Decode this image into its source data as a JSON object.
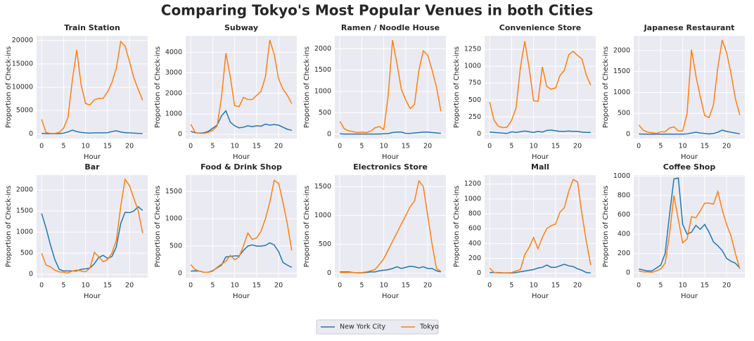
{
  "title": "Comparing Tokyo's Most Popular Venues in both Cities",
  "chart_data": [
    {
      "type": "line",
      "title": "Train Station",
      "xlabel": "Hour",
      "ylabel": "Proportion of Check-ins",
      "x": [
        0,
        1,
        2,
        3,
        4,
        5,
        6,
        7,
        8,
        9,
        10,
        11,
        12,
        13,
        14,
        15,
        16,
        17,
        18,
        19,
        20,
        21,
        22,
        23
      ],
      "xlim": [
        -1.15,
        24.15
      ],
      "xticks": [
        0,
        5,
        10,
        15,
        20
      ],
      "ylim": [
        -1000,
        21000
      ],
      "yticks": [
        0,
        5000,
        10000,
        15000,
        20000
      ],
      "grid": true,
      "series": [
        {
          "name": "New York City",
          "color": "#1f77b4",
          "values": [
            100,
            50,
            30,
            30,
            50,
            150,
            400,
            800,
            500,
            300,
            200,
            150,
            200,
            200,
            200,
            250,
            500,
            650,
            400,
            250,
            200,
            150,
            100,
            80
          ]
        },
        {
          "name": "Tokyo",
          "color": "#ff7f0e",
          "values": [
            3100,
            300,
            100,
            100,
            300,
            1200,
            3500,
            11500,
            18000,
            10500,
            6500,
            6200,
            7300,
            7600,
            7600,
            9000,
            11000,
            14000,
            19800,
            18800,
            15500,
            12000,
            9500,
            7200
          ]
        }
      ]
    },
    {
      "type": "line",
      "title": "Subway",
      "xlabel": "Hour",
      "ylabel": "Proportion of Check-ins",
      "x": [
        0,
        1,
        2,
        3,
        4,
        5,
        6,
        7,
        8,
        9,
        10,
        11,
        12,
        13,
        14,
        15,
        16,
        17,
        18,
        19,
        20,
        21,
        22,
        23
      ],
      "xlim": [
        -1.15,
        24.15
      ],
      "xticks": [
        0,
        5,
        10,
        15,
        20
      ],
      "ylim": [
        -200,
        4800
      ],
      "yticks": [
        0,
        1000,
        2000,
        3000,
        4000
      ],
      "grid": true,
      "series": [
        {
          "name": "New York City",
          "color": "#1f77b4",
          "values": [
            150,
            80,
            60,
            80,
            150,
            300,
            450,
            900,
            1150,
            600,
            420,
            320,
            350,
            420,
            380,
            420,
            400,
            500,
            450,
            480,
            450,
            350,
            250,
            200
          ]
        },
        {
          "name": "Tokyo",
          "color": "#ff7f0e",
          "values": [
            500,
            100,
            50,
            50,
            100,
            200,
            400,
            1800,
            3950,
            2800,
            1400,
            1350,
            1800,
            1700,
            1700,
            1900,
            2100,
            2800,
            4600,
            3900,
            2700,
            2200,
            1900,
            1500
          ]
        }
      ]
    },
    {
      "type": "line",
      "title": "Ramen /  Noodle House",
      "xlabel": "Hour",
      "ylabel": "Proportion of Check-ins",
      "x": [
        0,
        1,
        2,
        3,
        4,
        5,
        6,
        7,
        8,
        9,
        10,
        11,
        12,
        13,
        14,
        15,
        16,
        17,
        18,
        19,
        20,
        21,
        22,
        23
      ],
      "xlim": [
        -1.15,
        24.15
      ],
      "xticks": [
        0,
        5,
        10,
        15,
        20
      ],
      "ylim": [
        -100,
        2300
      ],
      "yticks": [
        0,
        500,
        1000,
        1500,
        2000
      ],
      "grid": true,
      "series": [
        {
          "name": "New York City",
          "color": "#1f77b4",
          "values": [
            10,
            5,
            5,
            5,
            5,
            5,
            5,
            5,
            5,
            5,
            10,
            15,
            40,
            50,
            50,
            20,
            20,
            30,
            40,
            50,
            50,
            40,
            30,
            20
          ]
        },
        {
          "name": "Tokyo",
          "color": "#ff7f0e",
          "values": [
            300,
            130,
            80,
            60,
            40,
            50,
            40,
            70,
            150,
            180,
            110,
            900,
            2200,
            1650,
            1050,
            800,
            600,
            700,
            1500,
            1950,
            1850,
            1500,
            1100,
            540
          ]
        }
      ]
    },
    {
      "type": "line",
      "title": "Convenience Store",
      "xlabel": "Hour",
      "ylabel": "Proportion of Check-ins",
      "x": [
        0,
        1,
        2,
        3,
        4,
        5,
        6,
        7,
        8,
        9,
        10,
        11,
        12,
        13,
        14,
        15,
        16,
        17,
        18,
        19,
        20,
        21,
        22,
        23
      ],
      "xlim": [
        -1.15,
        24.15
      ],
      "xticks": [
        0,
        5,
        10,
        15,
        20
      ],
      "ylim": [
        -70,
        1450
      ],
      "yticks": [
        0,
        250,
        500,
        750,
        1000,
        1250
      ],
      "grid": true,
      "series": [
        {
          "name": "New York City",
          "color": "#1f77b4",
          "values": [
            25,
            20,
            15,
            10,
            5,
            30,
            20,
            30,
            40,
            30,
            20,
            35,
            25,
            50,
            55,
            45,
            35,
            35,
            40,
            35,
            35,
            25,
            20,
            20
          ]
        },
        {
          "name": "Tokyo",
          "color": "#ff7f0e",
          "values": [
            470,
            200,
            110,
            90,
            100,
            200,
            380,
            980,
            1370,
            970,
            490,
            480,
            990,
            700,
            660,
            680,
            860,
            940,
            1170,
            1220,
            1160,
            1110,
            870,
            720
          ]
        }
      ]
    },
    {
      "type": "line",
      "title": "Japanese Restaurant",
      "xlabel": "Hour",
      "ylabel": "Proportion of Check-ins",
      "x": [
        0,
        1,
        2,
        3,
        4,
        5,
        6,
        7,
        8,
        9,
        10,
        11,
        12,
        13,
        14,
        15,
        16,
        17,
        18,
        19,
        20,
        21,
        22,
        23
      ],
      "xlim": [
        -1.15,
        24.15
      ],
      "xticks": [
        0,
        5,
        10,
        15,
        20
      ],
      "ylim": [
        -100,
        2350
      ],
      "yticks": [
        0,
        500,
        1000,
        1500,
        2000
      ],
      "grid": true,
      "series": [
        {
          "name": "New York City",
          "color": "#1f77b4",
          "values": [
            10,
            5,
            5,
            5,
            5,
            5,
            5,
            5,
            5,
            5,
            5,
            10,
            30,
            50,
            30,
            20,
            10,
            20,
            50,
            100,
            70,
            50,
            30,
            10
          ]
        },
        {
          "name": "Tokyo",
          "color": "#ff7f0e",
          "values": [
            220,
            100,
            50,
            40,
            20,
            60,
            60,
            150,
            180,
            80,
            80,
            500,
            2020,
            1400,
            900,
            450,
            400,
            700,
            1600,
            2250,
            1950,
            1450,
            850,
            460
          ]
        }
      ]
    },
    {
      "type": "line",
      "title": "Bar",
      "xlabel": "Hour",
      "ylabel": "Proportion of Check-ins",
      "x": [
        0,
        1,
        2,
        3,
        4,
        5,
        6,
        7,
        8,
        9,
        10,
        11,
        12,
        13,
        14,
        15,
        16,
        17,
        18,
        19,
        20,
        21,
        22,
        23
      ],
      "xlim": [
        -1.15,
        24.15
      ],
      "xticks": [
        0,
        5,
        10,
        15,
        20
      ],
      "ylim": [
        -80,
        2350
      ],
      "yticks": [
        0,
        500,
        1000,
        1500,
        2000
      ],
      "grid": true,
      "series": [
        {
          "name": "New York City",
          "color": "#1f77b4",
          "values": [
            1440,
            1100,
            700,
            350,
            120,
            80,
            80,
            80,
            80,
            120,
            130,
            150,
            250,
            400,
            450,
            380,
            420,
            650,
            1200,
            1470,
            1460,
            1500,
            1600,
            1510
          ]
        },
        {
          "name": "Tokyo",
          "color": "#ff7f0e",
          "values": [
            500,
            220,
            180,
            100,
            60,
            50,
            30,
            80,
            100,
            80,
            60,
            150,
            520,
            420,
            300,
            350,
            500,
            800,
            1600,
            2250,
            2100,
            1800,
            1500,
            980
          ]
        }
      ]
    },
    {
      "type": "line",
      "title": "Food & Drink Shop",
      "xlabel": "Hour",
      "ylabel": "Proportion of Check-ins",
      "x": [
        0,
        1,
        2,
        3,
        4,
        5,
        6,
        7,
        8,
        9,
        10,
        11,
        12,
        13,
        14,
        15,
        16,
        17,
        18,
        19,
        20,
        21,
        22,
        23
      ],
      "xlim": [
        -1.15,
        24.15
      ],
      "xticks": [
        0,
        5,
        10,
        15,
        20
      ],
      "ylim": [
        -80,
        1800
      ],
      "yticks": [
        0,
        500,
        1000,
        1500
      ],
      "grid": true,
      "series": [
        {
          "name": "New York City",
          "color": "#1f77b4",
          "values": [
            40,
            45,
            40,
            20,
            20,
            50,
            100,
            150,
            300,
            310,
            320,
            320,
            420,
            500,
            520,
            500,
            500,
            510,
            560,
            520,
            400,
            200,
            150,
            110
          ]
        },
        {
          "name": "Tokyo",
          "color": "#ff7f0e",
          "values": [
            160,
            70,
            40,
            20,
            20,
            40,
            110,
            170,
            220,
            330,
            250,
            300,
            500,
            740,
            620,
            650,
            770,
            1000,
            1300,
            1700,
            1650,
            1300,
            900,
            420
          ]
        }
      ]
    },
    {
      "type": "line",
      "title": "Electronics Store",
      "xlabel": "Hour",
      "ylabel": "Proportion of Check-ins",
      "x": [
        0,
        1,
        2,
        3,
        4,
        5,
        6,
        7,
        8,
        9,
        10,
        11,
        12,
        13,
        14,
        15,
        16,
        17,
        18,
        19,
        20,
        21,
        22,
        23
      ],
      "xlim": [
        -1.15,
        24.15
      ],
      "xticks": [
        0,
        5,
        10,
        15,
        20
      ],
      "ylim": [
        -80,
        1700
      ],
      "yticks": [
        0,
        500,
        1000,
        1500
      ],
      "grid": true,
      "series": [
        {
          "name": "New York City",
          "color": "#1f77b4",
          "values": [
            20,
            20,
            20,
            10,
            5,
            5,
            10,
            20,
            20,
            40,
            50,
            60,
            80,
            110,
            80,
            100,
            120,
            110,
            90,
            110,
            80,
            80,
            40,
            20
          ]
        },
        {
          "name": "Tokyo",
          "color": "#ff7f0e",
          "values": [
            10,
            10,
            10,
            10,
            5,
            10,
            20,
            40,
            60,
            150,
            250,
            400,
            550,
            700,
            850,
            1000,
            1150,
            1250,
            1600,
            1500,
            1000,
            500,
            80,
            30
          ]
        }
      ]
    },
    {
      "type": "line",
      "title": "Mall",
      "xlabel": "Hour",
      "ylabel": "Proportion of Check-ins",
      "x": [
        0,
        1,
        2,
        3,
        4,
        5,
        6,
        7,
        8,
        9,
        10,
        11,
        12,
        13,
        14,
        15,
        16,
        17,
        18,
        19,
        20,
        21,
        22,
        23
      ],
      "xlim": [
        -1.15,
        24.15
      ],
      "xticks": [
        0,
        5,
        10,
        15,
        20
      ],
      "ylim": [
        -60,
        1320
      ],
      "yticks": [
        0,
        200,
        400,
        600,
        800,
        1000,
        1200
      ],
      "grid": true,
      "series": [
        {
          "name": "New York City",
          "color": "#1f77b4",
          "values": [
            10,
            10,
            10,
            5,
            5,
            5,
            10,
            20,
            30,
            40,
            50,
            70,
            80,
            110,
            80,
            80,
            100,
            120,
            100,
            90,
            60,
            40,
            10,
            5
          ]
        },
        {
          "name": "Tokyo",
          "color": "#ff7f0e",
          "values": [
            70,
            10,
            5,
            5,
            5,
            10,
            30,
            50,
            250,
            350,
            480,
            330,
            480,
            600,
            640,
            660,
            820,
            880,
            1100,
            1260,
            1230,
            800,
            430,
            110
          ]
        }
      ]
    },
    {
      "type": "line",
      "title": "Coffee Shop",
      "xlabel": "Hour",
      "ylabel": "Proportion of Check-ins",
      "x": [
        0,
        1,
        2,
        3,
        4,
        5,
        6,
        7,
        8,
        9,
        10,
        11,
        12,
        13,
        14,
        15,
        16,
        17,
        18,
        19,
        20,
        21,
        22,
        23
      ],
      "xlim": [
        -1.15,
        24.15
      ],
      "xticks": [
        0,
        5,
        10,
        15,
        20
      ],
      "ylim": [
        -50,
        1010
      ],
      "yticks": [
        0,
        200,
        400,
        600,
        800,
        1000
      ],
      "grid": true,
      "series": [
        {
          "name": "New York City",
          "color": "#1f77b4",
          "values": [
            40,
            30,
            20,
            20,
            50,
            80,
            200,
            600,
            970,
            980,
            500,
            400,
            420,
            490,
            450,
            500,
            420,
            320,
            280,
            230,
            150,
            120,
            100,
            50
          ]
        },
        {
          "name": "Tokyo",
          "color": "#ff7f0e",
          "values": [
            20,
            10,
            10,
            5,
            20,
            40,
            100,
            400,
            800,
            550,
            310,
            350,
            580,
            570,
            640,
            720,
            720,
            710,
            840,
            650,
            500,
            380,
            200,
            40
          ]
        }
      ]
    }
  ]
}
